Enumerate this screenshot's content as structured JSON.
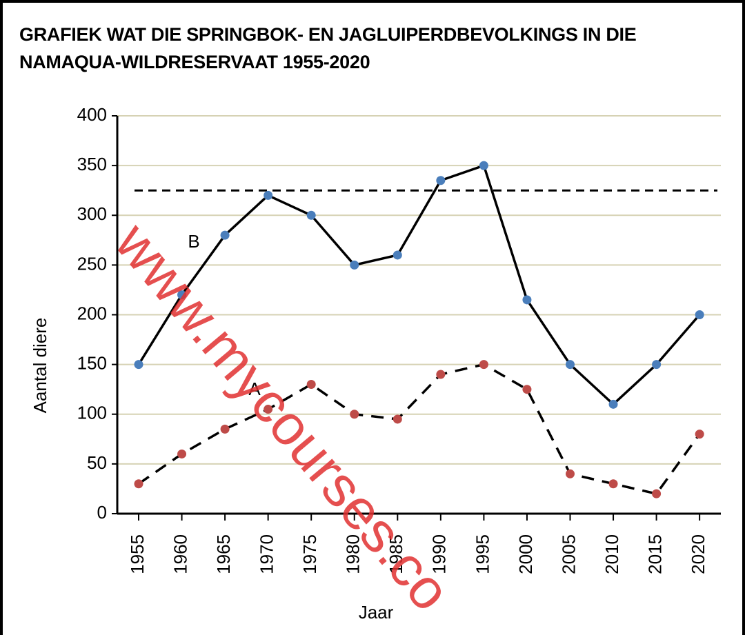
{
  "chart_data": {
    "type": "line",
    "title": "GRAFIEK WAT DIE SPRINGBOK- EN JAGLUIPERDBEVOLKINGS IN DIE NAMAQUA-WILDRESERVAAT 1955-2020",
    "xlabel": "Jaar",
    "ylabel": "Aantal diere",
    "categories": [
      "1955",
      "1960",
      "1965",
      "1970",
      "1975",
      "1980",
      "1985",
      "1990",
      "1995",
      "2000",
      "2005",
      "2010",
      "2015",
      "2020"
    ],
    "series": [
      {
        "name": "B",
        "color": "#4a7ebb",
        "line_color": "#000000",
        "dashed": false,
        "values": [
          150,
          220,
          280,
          320,
          300,
          250,
          260,
          335,
          350,
          215,
          150,
          110,
          150,
          200
        ]
      },
      {
        "name": "A",
        "color": "#be4b48",
        "line_color": "#000000",
        "dashed": true,
        "values": [
          30,
          60,
          85,
          105,
          130,
          100,
          95,
          140,
          150,
          125,
          40,
          30,
          20,
          80
        ]
      }
    ],
    "reference_line": 325,
    "ylim": [
      0,
      400
    ],
    "yticks": [
      0,
      50,
      100,
      150,
      200,
      250,
      300,
      350,
      400
    ],
    "grid": true,
    "watermark": "www.mycourses.co"
  }
}
